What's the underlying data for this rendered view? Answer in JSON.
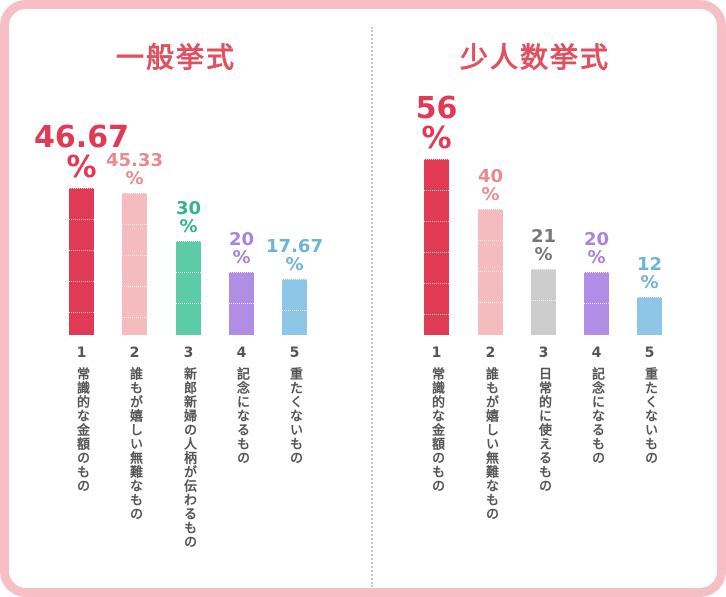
{
  "chart_data": [
    {
      "type": "bar",
      "title": "一般挙式",
      "ranks": [
        "1",
        "2",
        "3",
        "4",
        "5"
      ],
      "categories": [
        "常識的な金額のもの",
        "誰もが嬉しい無難なもの",
        "新郎新婦の人柄が伝わるもの",
        "記念になるもの",
        "重たくないもの"
      ],
      "values": [
        46.67,
        45.33,
        30,
        20,
        17.67
      ],
      "value_labels": [
        "46.67",
        "45.33",
        "30",
        "20",
        "17.67"
      ],
      "unit": "%",
      "colors": [
        "#e03a55",
        "#f5bcbf",
        "#5ccca7",
        "#b18de6",
        "#8dc6e6"
      ],
      "ylim": [
        0,
        56
      ]
    },
    {
      "type": "bar",
      "title": "少人数挙式",
      "ranks": [
        "1",
        "2",
        "3",
        "4",
        "5"
      ],
      "categories": [
        "常識的な金額のもの",
        "誰もが嬉しい無難なもの",
        "日常的に使えるもの",
        "記念になるもの",
        "重たくないもの"
      ],
      "values": [
        56,
        40,
        21,
        20,
        12
      ],
      "value_labels": [
        "56",
        "40",
        "21",
        "20",
        "12"
      ],
      "unit": "%",
      "colors": [
        "#e03a55",
        "#f5bcbf",
        "#cccccc",
        "#b18de6",
        "#8dc6e6"
      ],
      "label_colors": [
        "#e03a55",
        "#e98a8f",
        "#777777",
        "#a784df",
        "#6fb3d8"
      ],
      "ylim": [
        0,
        56
      ]
    }
  ]
}
